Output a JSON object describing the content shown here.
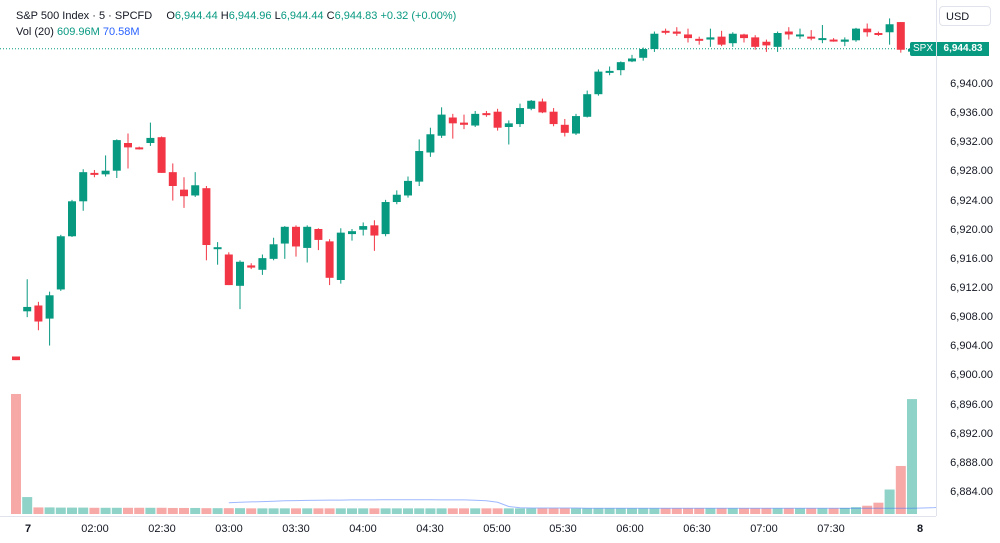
{
  "legend": {
    "symbol_name": "S&P 500 Index",
    "sep": "·",
    "interval": "5",
    "source": "SPCFD",
    "o_label": "O",
    "o_value": "6,944.44",
    "h_label": "H",
    "h_value": "6,944.96",
    "l_label": "L",
    "l_value": "6,944.44",
    "c_label": "C",
    "c_value": "6,944.83",
    "change": "+0.32 (+0.00%)",
    "vol_label": "Vol (20)",
    "vol_value": "609.96M",
    "vol_ma_value": "70.58M"
  },
  "currency_button": "USD",
  "last_price": {
    "symbol": "SPX",
    "value": "6,944.83"
  },
  "price_ticks": [
    "6,940.00",
    "6,936.00",
    "6,932.00",
    "6,928.00",
    "6,924.00",
    "6,920.00",
    "6,916.00",
    "6,912.00",
    "6,908.00",
    "6,904.00",
    "6,900.00",
    "6,896.00",
    "6,892.00",
    "6,888.00",
    "6,884.00"
  ],
  "time_ticks": [
    "7",
    "02:00",
    "02:30",
    "03:00",
    "03:30",
    "04:00",
    "04:30",
    "05:00",
    "05:30",
    "06:00",
    "06:30",
    "07:00",
    "07:30",
    "8"
  ],
  "colors": {
    "up": "#089981",
    "down": "#f23645",
    "up_vol": "#8fd3c8",
    "down_vol": "#f7a9a7",
    "ma": "#2962ff"
  },
  "chart_data": {
    "type": "candlestick",
    "interval": "5",
    "x": [
      "01:25",
      "01:30",
      "01:35",
      "01:40",
      "01:45",
      "01:50",
      "01:55",
      "02:00",
      "02:05",
      "02:10",
      "02:15",
      "02:20",
      "02:25",
      "02:30",
      "02:35",
      "02:40",
      "02:45",
      "02:50",
      "02:55",
      "03:00",
      "03:05",
      "03:10",
      "03:15",
      "03:20",
      "03:25",
      "03:30",
      "03:35",
      "03:40",
      "03:45",
      "03:50",
      "03:55",
      "04:00",
      "04:05",
      "04:10",
      "04:15",
      "04:20",
      "04:25",
      "04:30",
      "04:35",
      "04:40",
      "04:45",
      "04:50",
      "04:55",
      "05:00",
      "05:05",
      "05:10",
      "05:15",
      "05:20",
      "05:25",
      "05:30",
      "05:35",
      "05:40",
      "05:45",
      "05:50",
      "05:55",
      "06:00",
      "06:05",
      "06:10",
      "06:15",
      "06:20",
      "06:25",
      "06:30",
      "06:35",
      "06:40",
      "06:45",
      "06:50",
      "06:55",
      "07:00",
      "07:05",
      "07:10",
      "07:15",
      "07:20",
      "07:25",
      "07:30",
      "07:35",
      "07:40",
      "07:45",
      "07:50",
      "07:55",
      "08:00"
    ],
    "ohlc": [
      [
        6902.6,
        6902.6,
        6902.1,
        6902.1
      ],
      [
        6908.8,
        6913.2,
        6908.0,
        6909.4
      ],
      [
        6909.6,
        6910.1,
        6906.2,
        6907.4
      ],
      [
        6907.8,
        6911.5,
        6904.1,
        6911.0
      ],
      [
        6911.8,
        6919.3,
        6911.6,
        6919.1
      ],
      [
        6919.1,
        6924.1,
        6919.0,
        6923.9
      ],
      [
        6923.9,
        6928.3,
        6922.6,
        6927.9
      ],
      [
        6927.8,
        6928.2,
        6927.2,
        6927.6
      ],
      [
        6927.6,
        6930.2,
        6927.3,
        6928.1
      ],
      [
        6928.1,
        6932.4,
        6927.1,
        6932.3
      ],
      [
        6931.9,
        6933.2,
        6928.4,
        6931.3
      ],
      [
        6931.3,
        6931.4,
        6931.0,
        6931.2
      ],
      [
        6931.9,
        6934.7,
        6931.5,
        6932.6
      ],
      [
        6932.7,
        6932.8,
        6927.8,
        6927.8
      ],
      [
        6927.9,
        6929.1,
        6924.0,
        6926.0
      ],
      [
        6925.5,
        6927.2,
        6923.0,
        6924.6
      ],
      [
        6924.7,
        6927.9,
        6924.5,
        6926.1
      ],
      [
        6925.7,
        6926.0,
        6915.8,
        6917.9
      ],
      [
        6917.5,
        6918.3,
        6915.2,
        6917.6
      ],
      [
        6916.6,
        6916.9,
        6912.4,
        6912.4
      ],
      [
        6912.3,
        6915.8,
        6909.1,
        6915.6
      ],
      [
        6915.1,
        6915.4,
        6914.6,
        6914.8
      ],
      [
        6914.5,
        6916.6,
        6913.8,
        6916.1
      ],
      [
        6916.0,
        6918.9,
        6915.8,
        6918.0
      ],
      [
        6918.1,
        6920.5,
        6916.0,
        6920.4
      ],
      [
        6920.4,
        6920.6,
        6916.3,
        6917.7
      ],
      [
        6917.5,
        6920.6,
        6915.5,
        6920.4
      ],
      [
        6920.1,
        6920.2,
        6917.2,
        6918.6
      ],
      [
        6918.4,
        6918.7,
        6912.4,
        6913.4
      ],
      [
        6913.1,
        6920.2,
        6912.6,
        6919.6
      ],
      [
        6919.4,
        6920.1,
        6918.5,
        6919.8
      ],
      [
        6920.0,
        6921.0,
        6919.2,
        6920.5
      ],
      [
        6920.6,
        6921.3,
        6917.1,
        6919.2
      ],
      [
        6919.4,
        6924.1,
        6919.1,
        6923.8
      ],
      [
        6923.8,
        6925.4,
        6923.5,
        6924.8
      ],
      [
        6924.7,
        6927.3,
        6924.4,
        6926.7
      ],
      [
        6926.6,
        6932.4,
        6926.0,
        6930.8
      ],
      [
        6930.6,
        6934.0,
        6930.0,
        6933.1
      ],
      [
        6932.9,
        6936.8,
        6932.6,
        6935.8
      ],
      [
        6935.4,
        6935.9,
        6932.5,
        6934.6
      ],
      [
        6934.7,
        6935.8,
        6933.8,
        6934.4
      ],
      [
        6934.3,
        6936.3,
        6934.1,
        6935.9
      ],
      [
        6936.0,
        6936.3,
        6935.5,
        6935.8
      ],
      [
        6936.2,
        6936.6,
        6933.6,
        6934.0
      ],
      [
        6934.1,
        6935.0,
        6931.7,
        6934.6
      ],
      [
        6934.5,
        6937.3,
        6934.1,
        6936.7
      ],
      [
        6936.6,
        6937.8,
        6936.4,
        6937.7
      ],
      [
        6937.6,
        6938.0,
        6936.0,
        6936.1
      ],
      [
        6936.2,
        6936.7,
        6934.2,
        6934.5
      ],
      [
        6934.4,
        6935.2,
        6932.8,
        6933.3
      ],
      [
        6933.2,
        6935.9,
        6933.0,
        6935.6
      ],
      [
        6935.5,
        6939.1,
        6935.4,
        6938.6
      ],
      [
        6938.6,
        6942.0,
        6938.4,
        6941.7
      ],
      [
        6941.7,
        6942.4,
        6941.2,
        6941.8
      ],
      [
        6941.9,
        6943.1,
        6941.2,
        6943.0
      ],
      [
        6943.1,
        6944.0,
        6943.0,
        6943.5
      ],
      [
        6943.6,
        6945.0,
        6943.2,
        6944.8
      ],
      [
        6944.8,
        6947.2,
        6944.4,
        6946.9
      ],
      [
        6947.3,
        6947.6,
        6946.8,
        6947.2
      ],
      [
        6947.2,
        6947.8,
        6946.6,
        6946.9
      ],
      [
        6946.8,
        6947.6,
        6945.7,
        6946.3
      ],
      [
        6946.2,
        6946.5,
        6945.4,
        6946.1
      ],
      [
        6946.1,
        6947.6,
        6945.1,
        6946.4
      ],
      [
        6946.5,
        6947.3,
        6945.2,
        6945.4
      ],
      [
        6945.6,
        6947.1,
        6945.1,
        6946.9
      ],
      [
        6946.8,
        6946.9,
        6945.7,
        6946.3
      ],
      [
        6946.4,
        6946.7,
        6944.7,
        6945.1
      ],
      [
        6945.8,
        6946.1,
        6944.4,
        6945.3
      ],
      [
        6945.1,
        6947.2,
        6944.4,
        6947.0
      ],
      [
        6947.2,
        6947.8,
        6946.1,
        6946.8
      ],
      [
        6946.7,
        6947.6,
        6946.2,
        6946.8
      ],
      [
        6946.5,
        6947.4,
        6946.0,
        6946.3
      ],
      [
        6946.1,
        6948.1,
        6945.6,
        6946.3
      ],
      [
        6946.1,
        6946.3,
        6945.8,
        6945.9
      ],
      [
        6945.8,
        6946.4,
        6945.2,
        6946.1
      ],
      [
        6946.0,
        6947.7,
        6945.8,
        6947.6
      ],
      [
        6947.6,
        6948.3,
        6946.5,
        6947.1
      ],
      [
        6947.0,
        6947.2,
        6946.6,
        6946.9
      ],
      [
        6947.1,
        6949.0,
        6945.4,
        6948.2
      ],
      [
        6948.5,
        6948.5,
        6944.3,
        6944.7
      ],
      [
        6944.44,
        6944.96,
        6944.44,
        6944.83
      ]
    ],
    "volume_millions": [
      637,
      90,
      35,
      35,
      34,
      34,
      34,
      33,
      33,
      33,
      33,
      33,
      33,
      33,
      32,
      32,
      32,
      31,
      31,
      31,
      31,
      30,
      30,
      30,
      30,
      30,
      30,
      30,
      30,
      30,
      30,
      30,
      30,
      30,
      30,
      30,
      30,
      30,
      30,
      30,
      30,
      30,
      30,
      30,
      30,
      30,
      30,
      30,
      30,
      30,
      30,
      30,
      30,
      30,
      30,
      30,
      30,
      30,
      30,
      30,
      30,
      30,
      30,
      30,
      30,
      30,
      30,
      30,
      30,
      30,
      30,
      30,
      30,
      30,
      32,
      36,
      44,
      60,
      130,
      255,
      610
    ],
    "volume_ma_millions": [
      null,
      null,
      null,
      null,
      null,
      null,
      null,
      null,
      null,
      null,
      null,
      null,
      null,
      null,
      null,
      null,
      null,
      null,
      null,
      60,
      62,
      64,
      66,
      68,
      70,
      71,
      72,
      73,
      74,
      74,
      75,
      75,
      75,
      76,
      76,
      76,
      76,
      76,
      75,
      75,
      75,
      73,
      70,
      62,
      40,
      33,
      32,
      32,
      32,
      32,
      32,
      31,
      31,
      31,
      31,
      31,
      31,
      31,
      31,
      31,
      31,
      31,
      31,
      31,
      31,
      31,
      31,
      31,
      31,
      31,
      31,
      31,
      31,
      31,
      31,
      31,
      31,
      31,
      31,
      31,
      31,
      32,
      34,
      38,
      44,
      52,
      60,
      70.58
    ],
    "ylim": [
      6882,
      6952
    ],
    "grid": false
  }
}
